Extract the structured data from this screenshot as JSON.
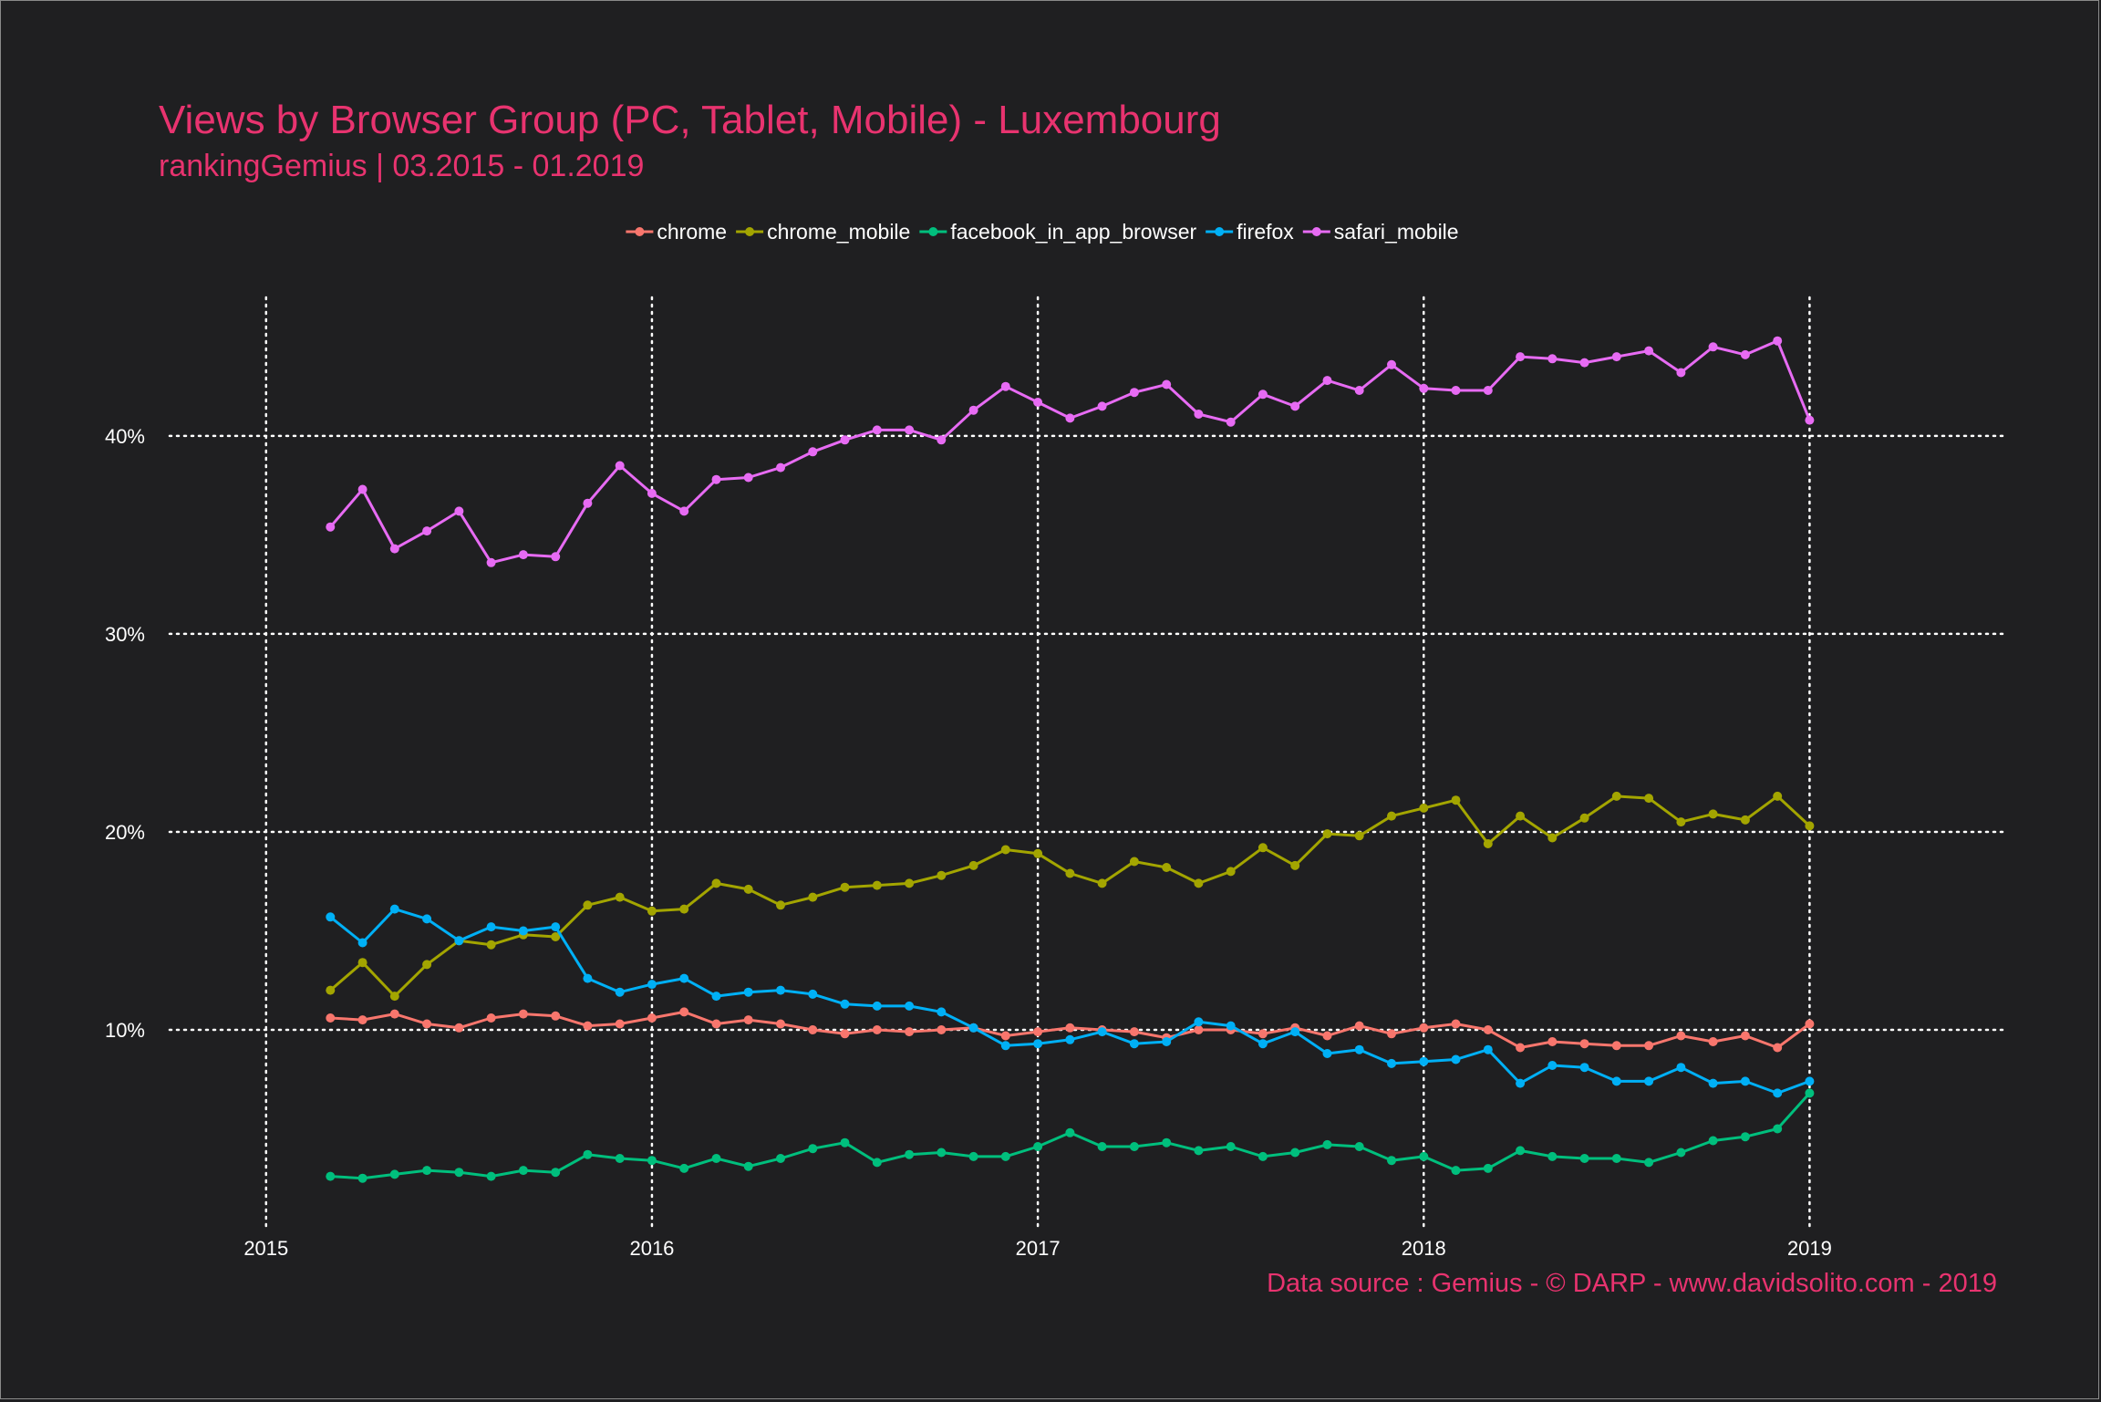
{
  "chart_data": {
    "type": "line",
    "title": "Views by Browser Group (PC, Tablet, Mobile) - Luxembourg",
    "subtitle": "rankingGemius | 03.2015 - 01.2019",
    "caption": "Data source : Gemius - © DARP - www.davidsolito.com - 2019",
    "x_ticks": [
      "2015",
      "2016",
      "2017",
      "2018",
      "2019"
    ],
    "y_ticks": [
      "10%",
      "20%",
      "30%",
      "40%"
    ],
    "x_range": [
      "2014-10",
      "2019-07"
    ],
    "ylim": [
      0,
      47
    ],
    "grid": true,
    "legend_position": "top",
    "x": [
      "2015-03",
      "2015-04",
      "2015-05",
      "2015-06",
      "2015-07",
      "2015-08",
      "2015-09",
      "2015-10",
      "2015-11",
      "2015-12",
      "2016-01",
      "2016-02",
      "2016-03",
      "2016-04",
      "2016-05",
      "2016-06",
      "2016-07",
      "2016-08",
      "2016-09",
      "2016-10",
      "2016-11",
      "2016-12",
      "2017-01",
      "2017-02",
      "2017-03",
      "2017-04",
      "2017-05",
      "2017-06",
      "2017-07",
      "2017-08",
      "2017-09",
      "2017-10",
      "2017-11",
      "2017-12",
      "2018-01",
      "2018-02",
      "2018-03",
      "2018-04",
      "2018-05",
      "2018-06",
      "2018-07",
      "2018-08",
      "2018-09",
      "2018-10",
      "2018-11",
      "2018-12",
      "2019-01"
    ],
    "series": [
      {
        "name": "chrome",
        "color": "#f8766d",
        "values": [
          10.6,
          10.5,
          10.8,
          10.3,
          10.1,
          10.6,
          10.8,
          10.7,
          10.2,
          10.3,
          10.6,
          10.9,
          10.3,
          10.5,
          10.3,
          10.0,
          9.8,
          10.0,
          9.9,
          10.0,
          10.1,
          9.7,
          9.9,
          10.1,
          10.0,
          9.9,
          9.6,
          10.0,
          10.0,
          9.8,
          10.1,
          9.7,
          10.2,
          9.8,
          10.1,
          10.3,
          10.0,
          9.1,
          9.4,
          9.3,
          9.2,
          9.2,
          9.7,
          9.4,
          9.7,
          9.1,
          10.3
        ]
      },
      {
        "name": "chrome_mobile",
        "color": "#a3a500",
        "values": [
          12.0,
          13.4,
          11.7,
          13.3,
          14.5,
          14.3,
          14.8,
          14.7,
          16.3,
          16.7,
          16.0,
          16.1,
          17.4,
          17.1,
          16.3,
          16.7,
          17.2,
          17.3,
          17.4,
          17.8,
          18.3,
          19.1,
          18.9,
          17.9,
          17.4,
          18.5,
          18.2,
          17.4,
          18.0,
          19.2,
          18.3,
          19.9,
          19.8,
          20.8,
          21.2,
          21.6,
          19.4,
          20.8,
          19.7,
          20.7,
          21.8,
          21.7,
          20.5,
          20.9,
          20.6,
          21.8,
          20.3
        ]
      },
      {
        "name": "facebook_in_app_browser",
        "color": "#00bf7d",
        "values": [
          2.6,
          2.5,
          2.7,
          2.9,
          2.8,
          2.6,
          2.9,
          2.8,
          3.7,
          3.5,
          3.4,
          3.0,
          3.5,
          3.1,
          3.5,
          4.0,
          4.3,
          3.3,
          3.7,
          3.8,
          3.6,
          3.6,
          4.1,
          4.8,
          4.1,
          4.1,
          4.3,
          3.9,
          4.1,
          3.6,
          3.8,
          4.2,
          4.1,
          3.4,
          3.6,
          2.9,
          3.0,
          3.9,
          3.6,
          3.5,
          3.5,
          3.3,
          3.8,
          4.4,
          4.6,
          5.0,
          6.8
        ]
      },
      {
        "name": "firefox",
        "color": "#00b0f6",
        "values": [
          15.7,
          14.4,
          16.1,
          15.6,
          14.5,
          15.2,
          15.0,
          15.2,
          12.6,
          11.9,
          12.3,
          12.6,
          11.7,
          11.9,
          12.0,
          11.8,
          11.3,
          11.2,
          11.2,
          10.9,
          10.1,
          9.2,
          9.3,
          9.5,
          9.9,
          9.3,
          9.4,
          10.4,
          10.2,
          9.3,
          9.9,
          8.8,
          9.0,
          8.3,
          8.4,
          8.5,
          9.0,
          7.3,
          8.2,
          8.1,
          7.4,
          7.4,
          8.1,
          7.3,
          7.4,
          6.8,
          7.4
        ]
      },
      {
        "name": "safari_mobile",
        "color": "#e76bf3",
        "values": [
          35.4,
          37.3,
          34.3,
          35.2,
          36.2,
          33.6,
          34.0,
          33.9,
          36.6,
          38.5,
          37.1,
          36.2,
          37.8,
          37.9,
          38.4,
          39.2,
          39.8,
          40.3,
          40.3,
          39.8,
          41.3,
          42.5,
          41.7,
          40.9,
          41.5,
          42.2,
          42.6,
          41.1,
          40.7,
          42.1,
          41.5,
          42.8,
          42.3,
          43.6,
          42.4,
          42.3,
          42.3,
          44.0,
          43.9,
          43.7,
          44.0,
          44.3,
          43.2,
          44.5,
          44.1,
          44.8,
          40.8
        ]
      }
    ]
  }
}
